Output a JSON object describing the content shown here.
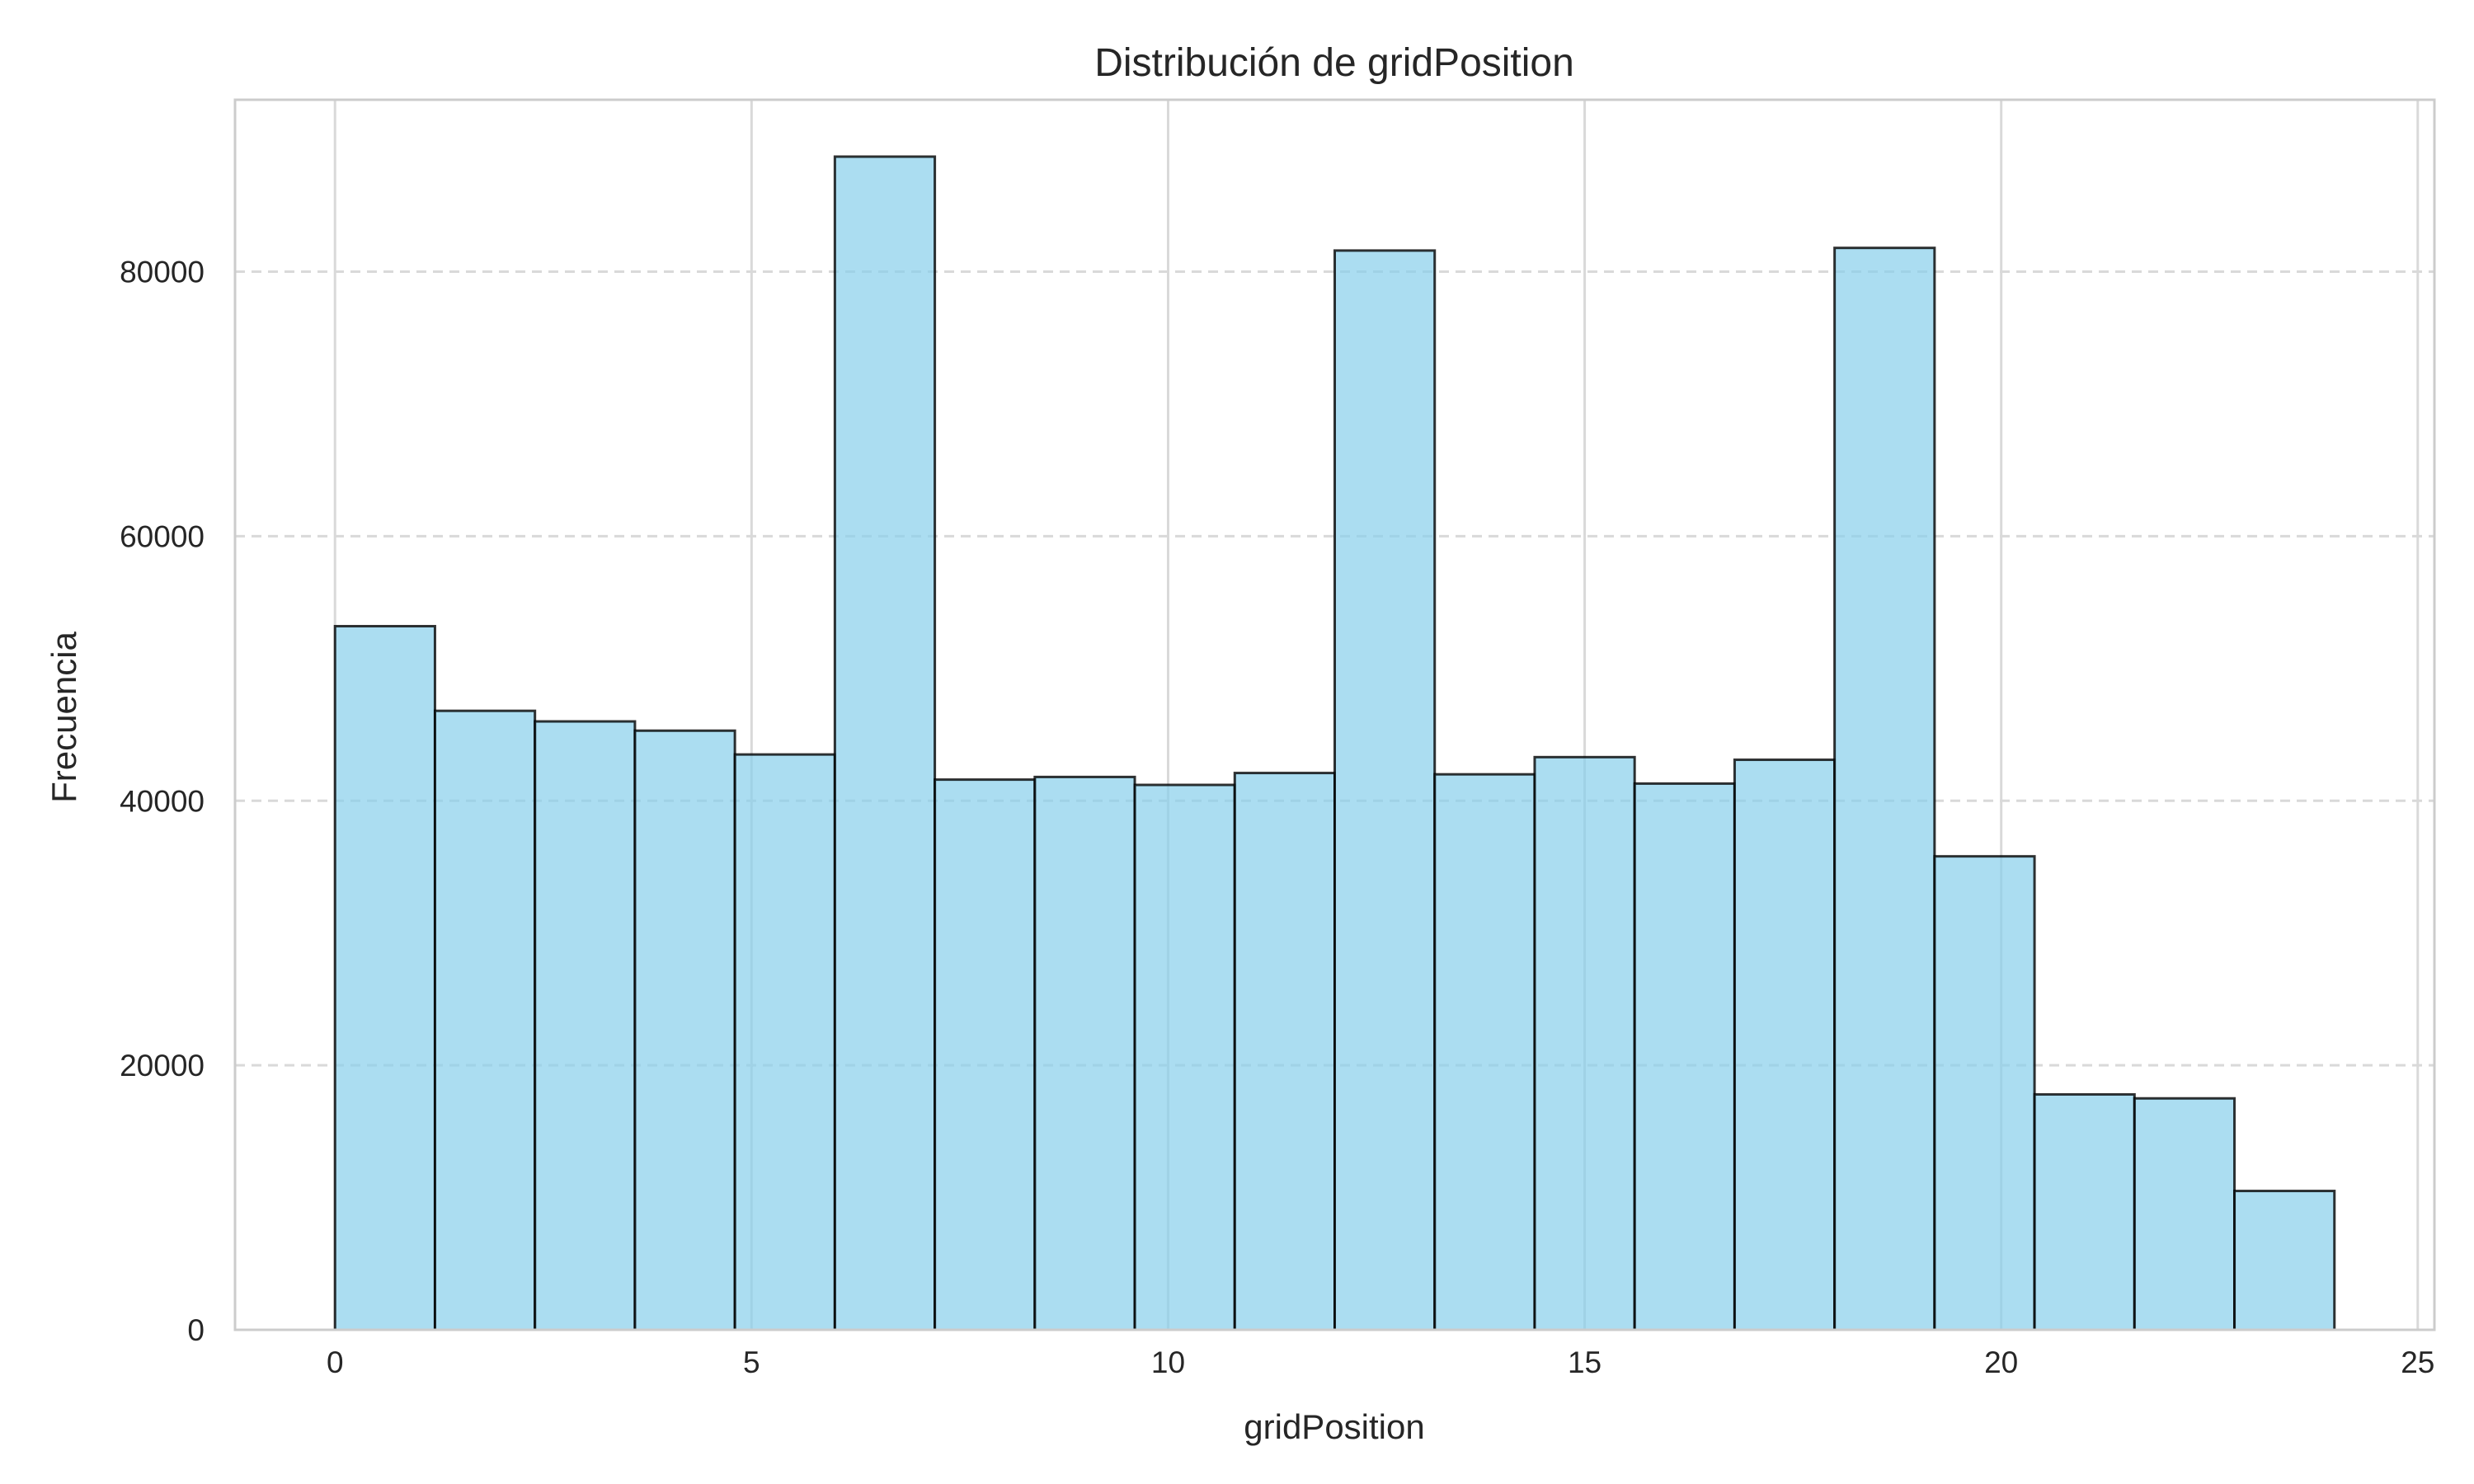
{
  "chart_data": {
    "type": "bar",
    "title": "Distribución de gridPosition",
    "xlabel": "gridPosition",
    "ylabel": "Frecuencia",
    "xlim": [
      -1.2,
      25.2
    ],
    "ylim": [
      0,
      93000
    ],
    "x_ticks": [
      0,
      5,
      10,
      15,
      20,
      25
    ],
    "y_ticks": [
      0,
      20000,
      40000,
      60000,
      80000
    ],
    "grid": {
      "x": "solid",
      "y": "dashed"
    },
    "bin_edges": [
      0,
      1.2,
      2.4,
      3.6,
      4.8,
      6.0,
      7.2,
      8.4,
      9.6,
      10.8,
      12.0,
      13.2,
      14.4,
      15.6,
      16.8,
      18.0,
      19.2,
      20.4,
      21.6,
      22.8,
      24.0
    ],
    "values": [
      53200,
      46800,
      46000,
      45300,
      43500,
      88700,
      41600,
      41800,
      41200,
      42100,
      81600,
      42000,
      43300,
      41300,
      43100,
      81800,
      35800,
      17800,
      17500,
      10500
    ],
    "colors": {
      "bar_fill": "#87CEEB",
      "bar_opacity": 0.7,
      "bar_edge": "#000000",
      "grid": "#d9d9d9",
      "spine": "#cccccc"
    }
  }
}
